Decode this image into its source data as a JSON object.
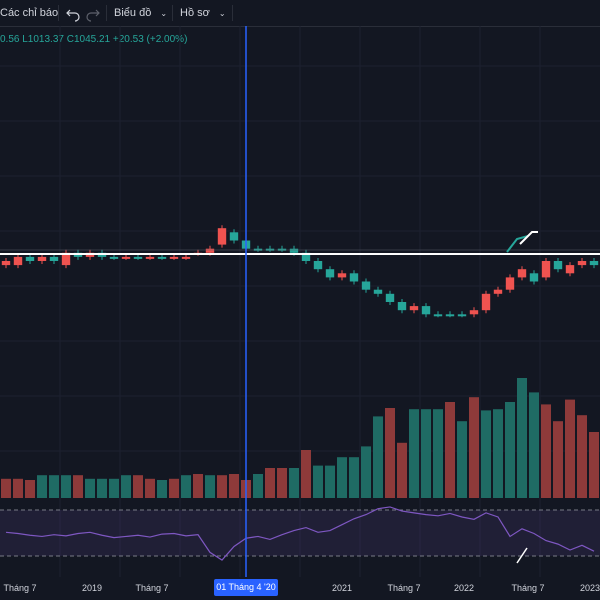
{
  "toolbar": {
    "indicators_label": "Các chỉ báo",
    "undo_icon": "undo-icon",
    "redo_icon": "redo-icon",
    "chart_label": "Biểu đồ",
    "profile_label": "Hồ sơ",
    "chevron_icon": "chevron-down-icon"
  },
  "legend": {
    "open_partial": "0.56",
    "low": "L1013.37",
    "close": "C1045.21",
    "change": "+20.53 (+2.00%)"
  },
  "time_axis": {
    "labels": [
      "Tháng 7",
      "2019",
      "Tháng 7",
      "2021",
      "Tháng 7",
      "2022",
      "Tháng 7",
      "2023"
    ],
    "crosshair_label": "01 Tháng 4 '20"
  },
  "colors": {
    "background": "#131722",
    "up": "#26a69a",
    "down": "#ef5350",
    "crosshair": "#2962ff",
    "rsi": "#7e57c2",
    "hline": "#ffffff"
  },
  "chart_data": {
    "type": "candlestick",
    "price_candles": [
      {
        "o": 0.49,
        "c": 0.5,
        "dir": "down"
      },
      {
        "o": 0.49,
        "c": 0.51,
        "dir": "down"
      },
      {
        "o": 0.51,
        "c": 0.5,
        "dir": "up"
      },
      {
        "o": 0.5,
        "c": 0.51,
        "dir": "down"
      },
      {
        "o": 0.51,
        "c": 0.5,
        "dir": "up"
      },
      {
        "o": 0.49,
        "c": 0.52,
        "dir": "down"
      },
      {
        "o": 0.51,
        "c": 0.52,
        "dir": "up"
      },
      {
        "o": 0.51,
        "c": 0.52,
        "dir": "down"
      },
      {
        "o": 0.52,
        "c": 0.51,
        "dir": "up"
      },
      {
        "o": 0.51,
        "c": 0.51,
        "dir": "up"
      },
      {
        "o": 0.51,
        "c": 0.51,
        "dir": "down"
      },
      {
        "o": 0.51,
        "c": 0.51,
        "dir": "up"
      },
      {
        "o": 0.51,
        "c": 0.51,
        "dir": "down"
      },
      {
        "o": 0.51,
        "c": 0.51,
        "dir": "up"
      },
      {
        "o": 0.51,
        "c": 0.51,
        "dir": "down"
      },
      {
        "o": 0.51,
        "c": 0.51,
        "dir": "down"
      },
      {
        "o": 0.52,
        "c": 0.52,
        "dir": "down"
      },
      {
        "o": 0.52,
        "c": 0.53,
        "dir": "down"
      },
      {
        "o": 0.54,
        "c": 0.58,
        "dir": "down"
      },
      {
        "o": 0.57,
        "c": 0.55,
        "dir": "up"
      },
      {
        "o": 0.55,
        "c": 0.53,
        "dir": "up"
      },
      {
        "o": 0.53,
        "c": 0.53,
        "dir": "up"
      },
      {
        "o": 0.53,
        "c": 0.53,
        "dir": "up"
      },
      {
        "o": 0.53,
        "c": 0.53,
        "dir": "up"
      },
      {
        "o": 0.53,
        "c": 0.52,
        "dir": "up"
      },
      {
        "o": 0.52,
        "c": 0.5,
        "dir": "up"
      },
      {
        "o": 0.5,
        "c": 0.48,
        "dir": "up"
      },
      {
        "o": 0.48,
        "c": 0.46,
        "dir": "up"
      },
      {
        "o": 0.46,
        "c": 0.47,
        "dir": "down"
      },
      {
        "o": 0.47,
        "c": 0.45,
        "dir": "up"
      },
      {
        "o": 0.45,
        "c": 0.43,
        "dir": "up"
      },
      {
        "o": 0.43,
        "c": 0.42,
        "dir": "up"
      },
      {
        "o": 0.42,
        "c": 0.4,
        "dir": "up"
      },
      {
        "o": 0.4,
        "c": 0.38,
        "dir": "up"
      },
      {
        "o": 0.38,
        "c": 0.39,
        "dir": "down"
      },
      {
        "o": 0.39,
        "c": 0.37,
        "dir": "up"
      },
      {
        "o": 0.37,
        "c": 0.37,
        "dir": "up"
      },
      {
        "o": 0.37,
        "c": 0.37,
        "dir": "up"
      },
      {
        "o": 0.37,
        "c": 0.37,
        "dir": "up"
      },
      {
        "o": 0.37,
        "c": 0.38,
        "dir": "down"
      },
      {
        "o": 0.38,
        "c": 0.42,
        "dir": "down"
      },
      {
        "o": 0.42,
        "c": 0.43,
        "dir": "down"
      },
      {
        "o": 0.43,
        "c": 0.46,
        "dir": "down"
      },
      {
        "o": 0.46,
        "c": 0.48,
        "dir": "down"
      },
      {
        "o": 0.47,
        "c": 0.45,
        "dir": "up"
      },
      {
        "o": 0.46,
        "c": 0.5,
        "dir": "down"
      },
      {
        "o": 0.5,
        "c": 0.48,
        "dir": "up"
      },
      {
        "o": 0.47,
        "c": 0.49,
        "dir": "down"
      },
      {
        "o": 0.49,
        "c": 0.5,
        "dir": "down"
      },
      {
        "o": 0.5,
        "c": 0.49,
        "dir": "up"
      }
    ],
    "volume_bars": [
      {
        "v": 0.16,
        "dir": "down"
      },
      {
        "v": 0.16,
        "dir": "down"
      },
      {
        "v": 0.15,
        "dir": "down"
      },
      {
        "v": 0.19,
        "dir": "up"
      },
      {
        "v": 0.19,
        "dir": "up"
      },
      {
        "v": 0.19,
        "dir": "up"
      },
      {
        "v": 0.19,
        "dir": "down"
      },
      {
        "v": 0.16,
        "dir": "up"
      },
      {
        "v": 0.16,
        "dir": "up"
      },
      {
        "v": 0.16,
        "dir": "up"
      },
      {
        "v": 0.19,
        "dir": "up"
      },
      {
        "v": 0.19,
        "dir": "down"
      },
      {
        "v": 0.16,
        "dir": "down"
      },
      {
        "v": 0.15,
        "dir": "up"
      },
      {
        "v": 0.16,
        "dir": "down"
      },
      {
        "v": 0.19,
        "dir": "up"
      },
      {
        "v": 0.2,
        "dir": "down"
      },
      {
        "v": 0.19,
        "dir": "up"
      },
      {
        "v": 0.19,
        "dir": "down"
      },
      {
        "v": 0.2,
        "dir": "down"
      },
      {
        "v": 0.15,
        "dir": "down"
      },
      {
        "v": 0.2,
        "dir": "up"
      },
      {
        "v": 0.25,
        "dir": "down"
      },
      {
        "v": 0.25,
        "dir": "down"
      },
      {
        "v": 0.25,
        "dir": "up"
      },
      {
        "v": 0.4,
        "dir": "down"
      },
      {
        "v": 0.27,
        "dir": "up"
      },
      {
        "v": 0.27,
        "dir": "up"
      },
      {
        "v": 0.34,
        "dir": "up"
      },
      {
        "v": 0.34,
        "dir": "up"
      },
      {
        "v": 0.43,
        "dir": "up"
      },
      {
        "v": 0.68,
        "dir": "up"
      },
      {
        "v": 0.75,
        "dir": "down"
      },
      {
        "v": 0.46,
        "dir": "down"
      },
      {
        "v": 0.74,
        "dir": "up"
      },
      {
        "v": 0.74,
        "dir": "up"
      },
      {
        "v": 0.74,
        "dir": "up"
      },
      {
        "v": 0.8,
        "dir": "down"
      },
      {
        "v": 0.64,
        "dir": "up"
      },
      {
        "v": 0.84,
        "dir": "down"
      },
      {
        "v": 0.73,
        "dir": "up"
      },
      {
        "v": 0.74,
        "dir": "up"
      },
      {
        "v": 0.8,
        "dir": "up"
      },
      {
        "v": 1.0,
        "dir": "up"
      },
      {
        "v": 0.88,
        "dir": "up"
      },
      {
        "v": 0.78,
        "dir": "down"
      },
      {
        "v": 0.64,
        "dir": "down"
      },
      {
        "v": 0.82,
        "dir": "down"
      },
      {
        "v": 0.69,
        "dir": "down"
      },
      {
        "v": 0.55,
        "dir": "down"
      }
    ],
    "rsi_line": [
      0.52,
      0.5,
      0.47,
      0.45,
      0.48,
      0.46,
      0.5,
      0.52,
      0.47,
      0.43,
      0.45,
      0.47,
      0.44,
      0.49,
      0.5,
      0.46,
      0.48,
      0.18,
      0.05,
      0.28,
      0.42,
      0.45,
      0.4,
      0.48,
      0.55,
      0.6,
      0.52,
      0.55,
      0.65,
      0.75,
      0.82,
      0.92,
      0.95,
      0.88,
      0.85,
      0.82,
      0.8,
      0.84,
      0.78,
      0.74,
      0.85,
      0.78,
      0.45,
      0.58,
      0.5,
      0.38,
      0.32,
      0.22,
      0.3,
      0.2
    ]
  }
}
